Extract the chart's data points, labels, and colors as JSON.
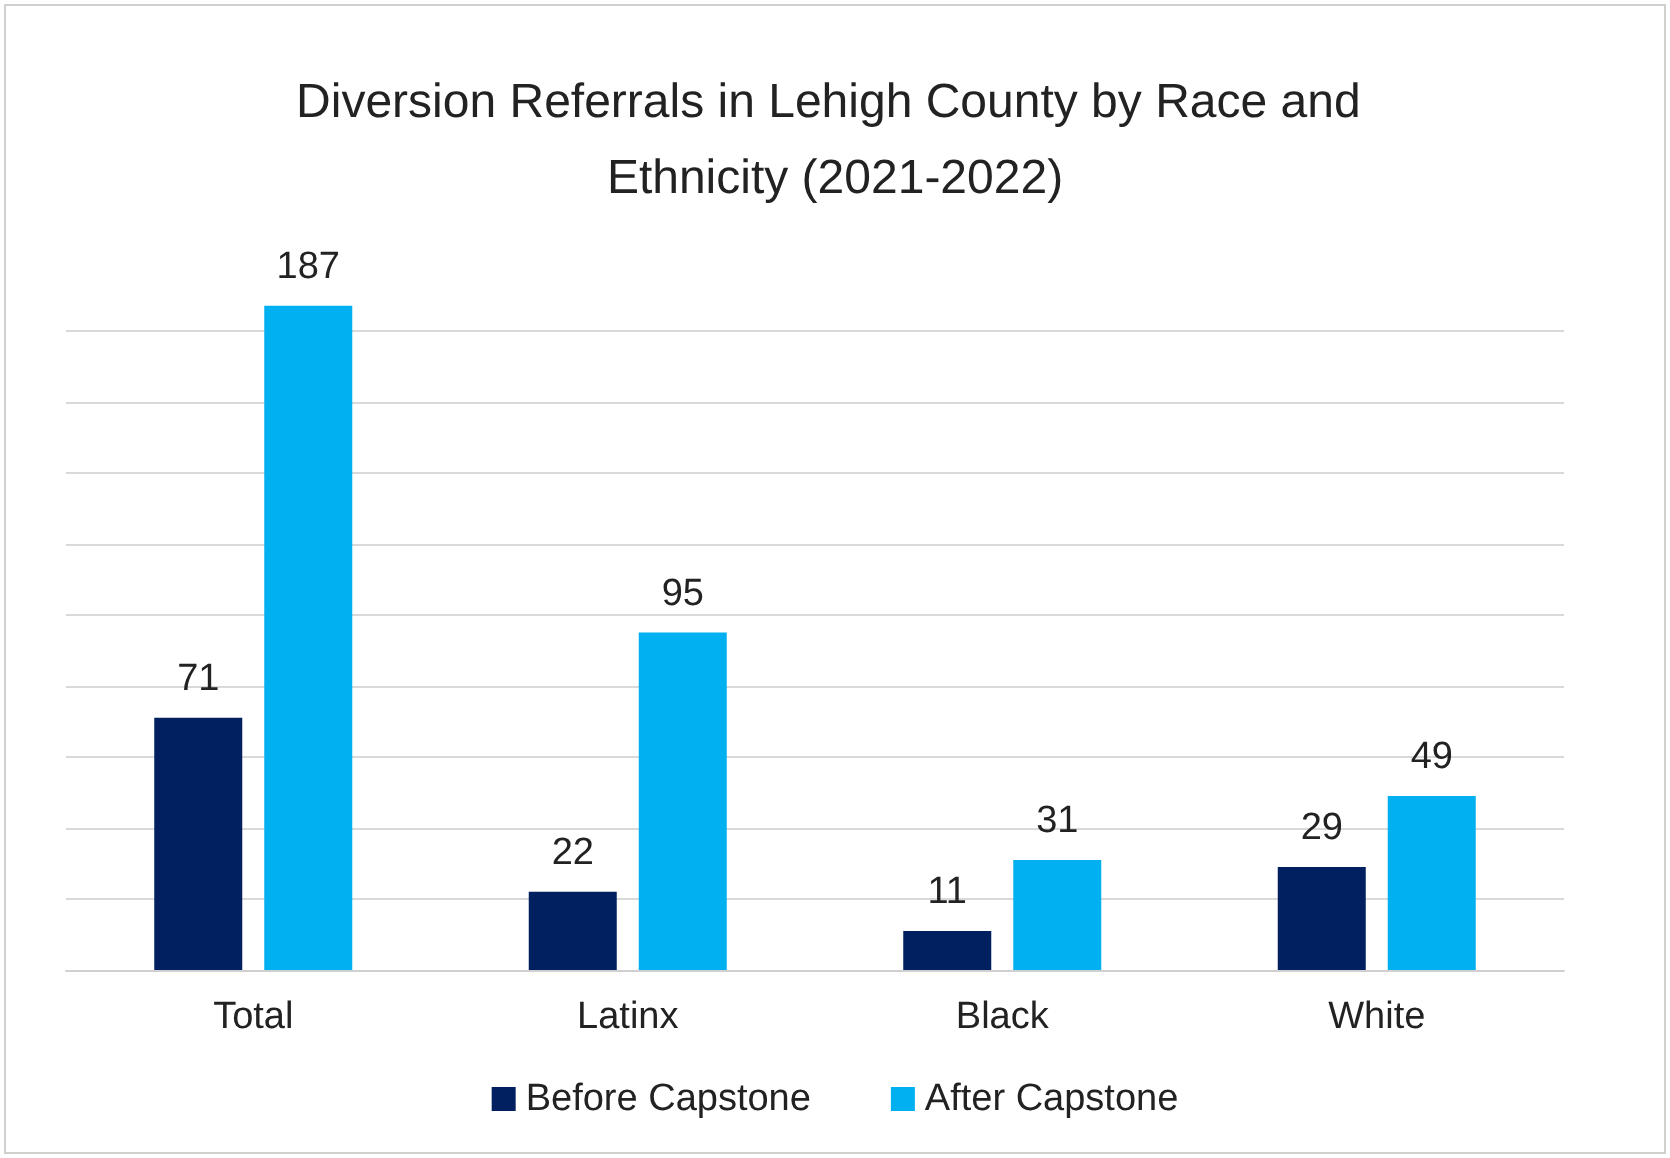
{
  "chart_data": {
    "type": "bar",
    "title": "Diversion Referrals in Lehigh County by Race and Ethnicity (2021-2022)",
    "categories": [
      "Total",
      "Latinx",
      "Black",
      "White"
    ],
    "series": [
      {
        "name": "Before Capstone",
        "color": "#002060",
        "values": [
          71,
          22,
          11,
          29
        ]
      },
      {
        "name": "After Capstone",
        "color": "#00b0f0",
        "values": [
          187,
          95,
          31,
          49
        ]
      }
    ],
    "yticks": [
      {
        "value": 0,
        "label": null
      },
      {
        "value": 20,
        "label": null
      },
      {
        "value": 40,
        "label": null
      },
      {
        "value": 60,
        "label": null
      },
      {
        "value": 80,
        "label": null
      },
      {
        "value": 100,
        "label": null
      },
      {
        "value": 120,
        "label": null
      },
      {
        "value": 140,
        "label": null
      },
      {
        "value": 160,
        "label": null
      },
      {
        "value": 180,
        "label": null
      }
    ],
    "tick_labels": "x",
    "grid": "y",
    "legend": "bottom",
    "data_labels": true
  }
}
